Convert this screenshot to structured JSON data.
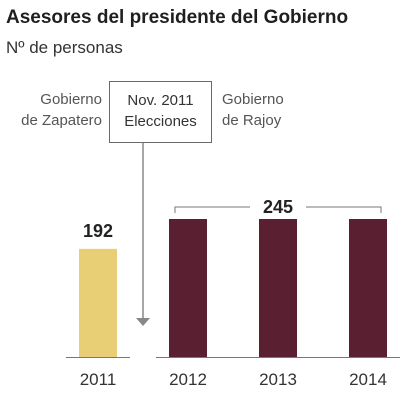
{
  "title": "Asesores del presidente del Gobierno",
  "subtitle": "Nº de personas",
  "annotations": {
    "left_government": [
      "Gobierno",
      "de Zapatero"
    ],
    "right_government": [
      "Gobierno",
      "de Rajoy"
    ],
    "event": [
      "Nov. 2011",
      "Elecciones"
    ],
    "bracket_label": "245"
  },
  "colors": {
    "zapatero": "#e8cf75",
    "rajoy": "#5b1f32",
    "axis": "#777777",
    "arrow": "#888888"
  },
  "chart_data": {
    "type": "bar",
    "title": "Asesores del presidente del Gobierno",
    "subtitle": "Nº de personas",
    "categories": [
      "2011",
      "2012",
      "2013",
      "2014"
    ],
    "values": [
      192,
      245,
      245,
      245
    ],
    "data_labels": [
      "192",
      "",
      "",
      ""
    ],
    "group_label": "245",
    "ylim": [
      0,
      245
    ],
    "grid": false,
    "legend": "none"
  }
}
